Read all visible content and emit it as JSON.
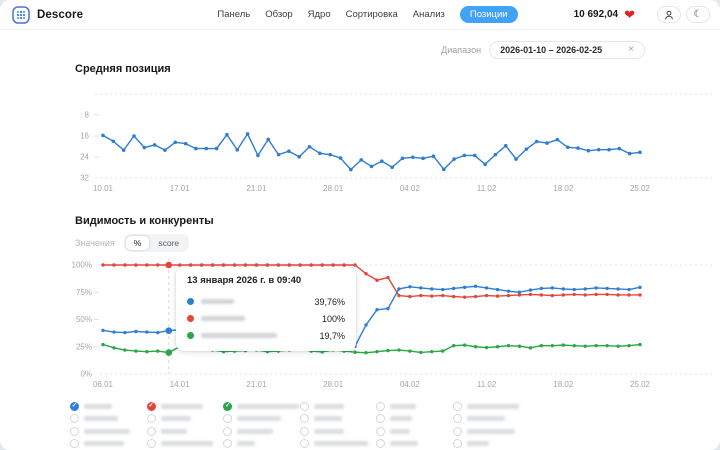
{
  "header": {
    "brand": "Descore",
    "nav": [
      {
        "label": "Панель",
        "active": false
      },
      {
        "label": "Обзор",
        "active": false
      },
      {
        "label": "Ядро",
        "active": false
      },
      {
        "label": "Сортировка",
        "active": false
      },
      {
        "label": "Анализ",
        "active": false
      },
      {
        "label": "Позиции",
        "active": true
      }
    ],
    "balance": "10 692,04",
    "accent_color": "#41a3f5"
  },
  "icons": {
    "heart_glyph": "❤",
    "moon_glyph": "☾",
    "close_glyph": "×"
  },
  "filters": {
    "range_label": "Диапазон",
    "range_value": "2026-01-10 – 2026-02-25"
  },
  "chart_data": [
    {
      "type": "line",
      "title": "Средняя позиция",
      "x_ticks": [
        "10.01",
        "17.01",
        "21.01",
        "28.01",
        "04.02",
        "11.02",
        "18.02",
        "25.02"
      ],
      "y_ticks": [
        8,
        16,
        24,
        32
      ],
      "y_inverted": true,
      "ylim": [
        0,
        32
      ],
      "grid": "dashed-top-bottom",
      "series": [
        {
          "name": "Средняя позиция",
          "color": "#2f7dd2",
          "values": [
            15.8,
            18,
            21.4,
            16,
            20.4,
            19.4,
            21.4,
            18.4,
            18.9,
            20.8,
            20.8,
            20.8,
            15.5,
            21.3,
            15.2,
            23.4,
            17.3,
            23.1,
            21.8,
            23.9,
            20.1,
            22.6,
            23.1,
            24.4,
            28.8,
            25.1,
            27.6,
            25.6,
            27.9,
            24.5,
            24.1,
            24.5,
            23.7,
            28.7,
            24.8,
            23.4,
            23.4,
            26.8,
            23.1,
            19.7,
            24.8,
            21.0,
            18.1,
            18.7,
            17.4,
            20.3,
            20.6,
            21.6,
            21.2,
            21.2,
            20.8,
            22.7,
            22.2
          ]
        }
      ]
    },
    {
      "type": "line",
      "title": "Видимость и конкуренты",
      "unit_toggle": {
        "label": "Значения",
        "options": [
          "%",
          "score"
        ],
        "selected": "%"
      },
      "x_ticks": [
        "06.01",
        "14.01",
        "21.01",
        "28.01",
        "04.02",
        "11.02",
        "18.02",
        "25.02"
      ],
      "y_ticks": [
        "100%",
        "75%",
        "50%",
        "25%",
        "0%"
      ],
      "ylim": [
        0,
        100
      ],
      "grid": "dashed-top-bottom",
      "series": [
        {
          "name": "blurred-site-blue",
          "color": "#2f7dd2",
          "values": [
            40,
            38.5,
            38,
            39,
            38.5,
            38,
            39.8,
            40.5,
            40,
            39,
            38.5,
            39,
            39.5,
            40,
            39,
            38.5,
            39,
            38.5,
            39,
            32,
            38,
            39,
            38.5,
            25.5,
            45,
            59,
            60,
            78,
            80,
            79,
            78,
            77.5,
            78.5,
            79.5,
            80.5,
            79,
            77.5,
            76,
            75,
            77,
            78.5,
            79,
            78,
            77.5,
            78,
            79,
            78.5,
            78,
            77.5,
            79.5
          ]
        },
        {
          "name": "blurred-site-red",
          "color": "#e6453c",
          "values": [
            100,
            100,
            100,
            100,
            100,
            100,
            100,
            100,
            100,
            100,
            100,
            100,
            100,
            100,
            100,
            100,
            100,
            100,
            100,
            100,
            100,
            100,
            100,
            100,
            92,
            86,
            88.5,
            72,
            71,
            72,
            71.5,
            72,
            71,
            70.5,
            71,
            72,
            71.5,
            72,
            72.5,
            73,
            72.5,
            72,
            72.5,
            73,
            72.5,
            73,
            73,
            72.5,
            72.5,
            72.5
          ]
        },
        {
          "name": "blurred-site-green",
          "color": "#27a844",
          "values": [
            27,
            24,
            22,
            21,
            20.5,
            21,
            19.7,
            25,
            28,
            24,
            22,
            20.5,
            21,
            21.5,
            22,
            20.5,
            21,
            22,
            23,
            21,
            20.3,
            22,
            21,
            20,
            19.5,
            20.5,
            21.5,
            22,
            21,
            19.8,
            20.5,
            21,
            26,
            26.5,
            25,
            24.3,
            25,
            26,
            25.5,
            24,
            26,
            26,
            26.5,
            26,
            25.5,
            26,
            26,
            25.5,
            26,
            27
          ]
        }
      ],
      "tooltip": {
        "title": "13 января 2026 г. в 09:40",
        "index": 6,
        "rows": [
          {
            "color": "#2f7dd2",
            "value": "39,76%",
            "name_blur_width": 33
          },
          {
            "color": "#e6453c",
            "value": "100%",
            "name_blur_width": 44
          },
          {
            "color": "#27a844",
            "value": "19,7%",
            "name_blur_width": 76
          }
        ]
      }
    }
  ],
  "legend": {
    "items": [
      {
        "checked": true,
        "color": "#2b7de0",
        "blur_width": 28
      },
      {
        "checked": true,
        "color": "#e6453c",
        "blur_width": 42
      },
      {
        "checked": true,
        "color": "#27a844",
        "blur_width": 62
      },
      {
        "checked": false,
        "color": "",
        "blur_width": 30
      },
      {
        "checked": false,
        "color": "",
        "blur_width": 26
      },
      {
        "checked": false,
        "color": "",
        "blur_width": 52
      },
      {
        "checked": false,
        "color": "",
        "blur_width": 34
      },
      {
        "checked": false,
        "color": "",
        "blur_width": 30
      },
      {
        "checked": false,
        "color": "",
        "blur_width": 44
      },
      {
        "checked": false,
        "color": "",
        "blur_width": 28
      },
      {
        "checked": false,
        "color": "",
        "blur_width": 22
      },
      {
        "checked": false,
        "color": "",
        "blur_width": 38
      },
      {
        "checked": false,
        "color": "",
        "blur_width": 46
      },
      {
        "checked": false,
        "color": "",
        "blur_width": 26
      },
      {
        "checked": false,
        "color": "",
        "blur_width": 36
      },
      {
        "checked": false,
        "color": "",
        "blur_width": 30
      },
      {
        "checked": false,
        "color": "",
        "blur_width": 20
      },
      {
        "checked": false,
        "color": "",
        "blur_width": 48
      },
      {
        "checked": false,
        "color": "",
        "blur_width": 40
      },
      {
        "checked": false,
        "color": "",
        "blur_width": 52
      },
      {
        "checked": false,
        "color": "",
        "blur_width": 18
      },
      {
        "checked": false,
        "color": "",
        "blur_width": 54
      },
      {
        "checked": false,
        "color": "",
        "blur_width": 28
      },
      {
        "checked": false,
        "color": "",
        "blur_width": 22
      }
    ]
  }
}
